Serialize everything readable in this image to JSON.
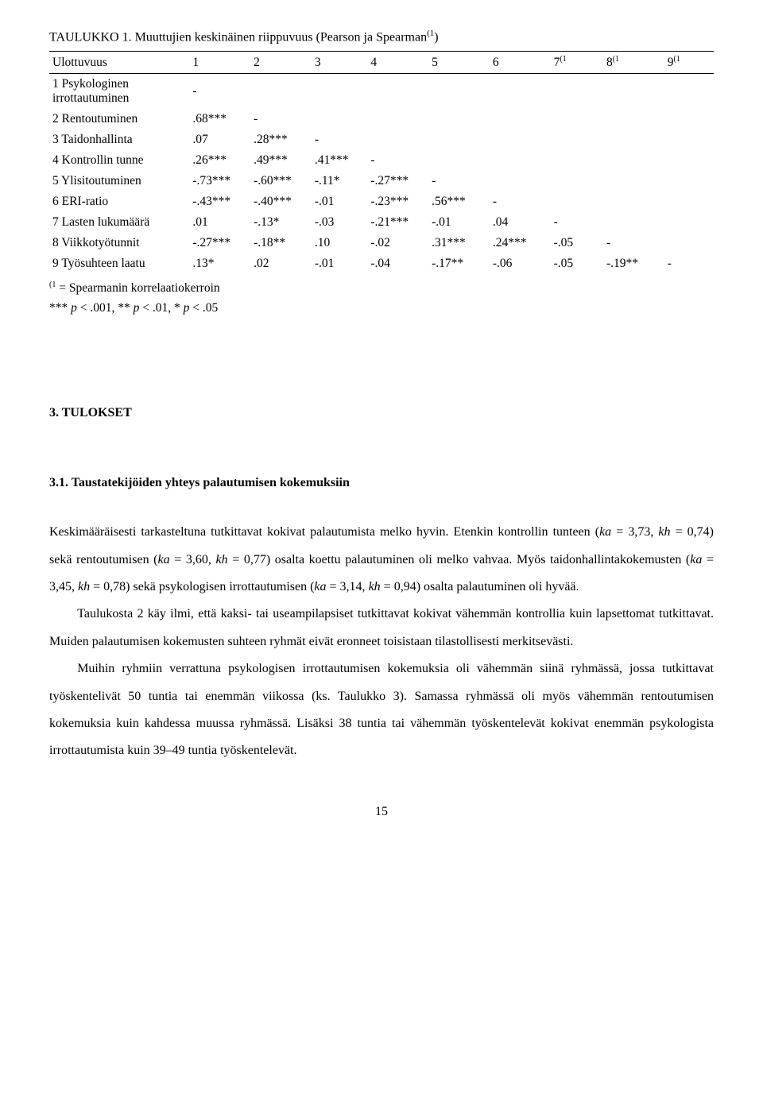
{
  "table": {
    "title_prefix": "TAULUKKO 1. Muuttujien keskinäinen riippuvuus (Pearson ja Spearman",
    "title_sup": "(1",
    "title_suffix": ")",
    "header_label": "Ulottuvuus",
    "columns": [
      "1",
      "2",
      "3",
      "4",
      "5",
      "6",
      "7",
      "8",
      "9"
    ],
    "columns_sup": [
      "",
      "",
      "",
      "",
      "",
      "",
      "(1",
      "(1",
      "(1"
    ],
    "rows": [
      {
        "label": "1 Psykologinen irrottautuminen",
        "cells": [
          "-",
          "",
          "",
          "",
          "",
          "",
          "",
          "",
          ""
        ]
      },
      {
        "label": "2 Rentoutuminen",
        "cells": [
          ".68***",
          "-",
          "",
          "",
          "",
          "",
          "",
          "",
          ""
        ]
      },
      {
        "label": "3 Taidonhallinta",
        "cells": [
          ".07",
          ".28***",
          "-",
          "",
          "",
          "",
          "",
          "",
          ""
        ]
      },
      {
        "label": "4 Kontrollin tunne",
        "cells": [
          ".26***",
          ".49***",
          ".41***",
          "-",
          "",
          "",
          "",
          "",
          ""
        ]
      },
      {
        "label": "5 Ylisitoutuminen",
        "cells": [
          "-.73***",
          "-.60***",
          "-.11*",
          "-.27***",
          "-",
          "",
          "",
          "",
          ""
        ]
      },
      {
        "label": "6 ERI-ratio",
        "cells": [
          "-.43***",
          "-.40***",
          "-.01",
          "-.23***",
          ".56***",
          "-",
          "",
          "",
          ""
        ]
      },
      {
        "label": "7 Lasten lukumäärä",
        "cells": [
          ".01",
          "-.13*",
          "-.03",
          "-.21***",
          "-.01",
          ".04",
          "-",
          "",
          ""
        ]
      },
      {
        "label": "8 Viikkotyötunnit",
        "cells": [
          "-.27***",
          "-.18**",
          ".10",
          "-.02",
          ".31***",
          ".24***",
          "-.05",
          "-",
          ""
        ]
      },
      {
        "label": "9 Työsuhteen laatu",
        "cells": [
          ".13*",
          ".02",
          "-.01",
          "-.04",
          "-.17**",
          "-.06",
          "-.05",
          "-.19**",
          "-"
        ]
      }
    ],
    "footnote_sup": "(1",
    "footnote_line1": " = Spearmanin korrelaatiokerroin",
    "footnote_line2_a": "*** ",
    "footnote_line2_b": "p",
    "footnote_line2_c": " < .001, ** ",
    "footnote_line2_d": "p",
    "footnote_line2_e": " < .01, * ",
    "footnote_line2_f": "p",
    "footnote_line2_g": " < .05"
  },
  "headings": {
    "section": "3. TULOKSET",
    "subsection": "3.1. Taustatekijöiden yhteys palautumisen kokemuksiin"
  },
  "paragraphs": {
    "p1_a": "Keskimääräisesti tarkasteltuna tutkittavat kokivat palautumista melko hyvin. Etenkin kontrollin tunteen (",
    "p1_ka1": "ka",
    "p1_b": " = 3,73, ",
    "p1_kh1": "kh",
    "p1_c": " = 0,74) sekä rentoutumisen (",
    "p1_ka2": "ka",
    "p1_d": " = 3,60, ",
    "p1_kh2": "kh",
    "p1_e": " = 0,77) osalta koettu palautuminen oli melko vahvaa. Myös taidonhallintakokemusten (",
    "p1_ka3": "ka",
    "p1_f": " = 3,45, ",
    "p1_kh3": "kh",
    "p1_g": " = 0,78) sekä psykologisen irrottautumisen (",
    "p1_ka4": "ka",
    "p1_h": " = 3,14, ",
    "p1_kh4": "kh",
    "p1_i": " = 0,94) osalta palautuminen oli hyvää.",
    "p2": "Taulukosta 2 käy ilmi, että kaksi- tai useampilapsiset tutkittavat kokivat vähemmän kontrollia kuin lapsettomat tutkittavat. Muiden palautumisen kokemusten suhteen ryhmät eivät eronneet toisistaan tilastollisesti merkitsevästi.",
    "p3": "Muihin ryhmiin verrattuna psykologisen irrottautumisen kokemuksia oli vähemmän siinä ryhmässä, jossa tutkittavat työskentelivät 50 tuntia tai enemmän viikossa (ks. Taulukko 3). Samassa ryhmässä oli myös vähemmän rentoutumisen kokemuksia kuin kahdessa muussa ryhmässä. Lisäksi 38 tuntia tai vähemmän työskentelevät kokivat enemmän psykologista irrottautumista kuin 39–49 tuntia työskentelevät."
  },
  "page_number": "15"
}
